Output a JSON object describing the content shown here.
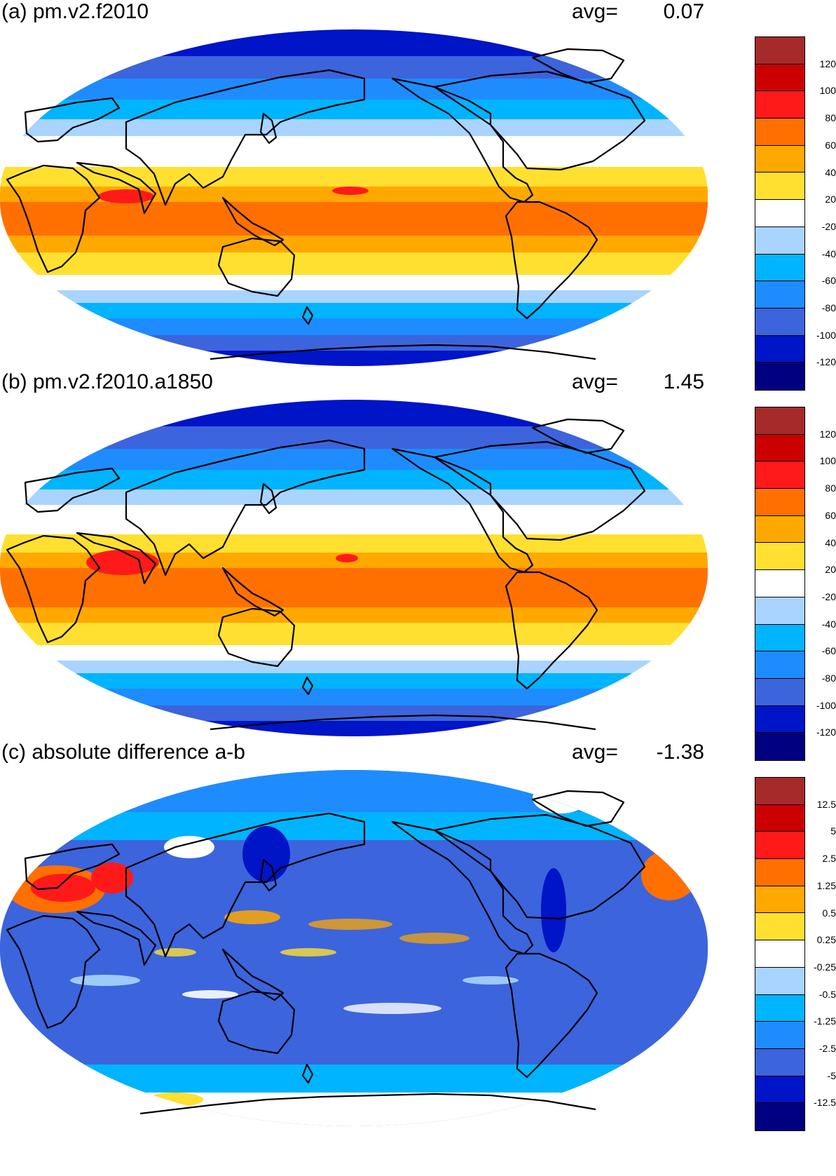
{
  "panels": [
    {
      "title": "(a) pm.v2.f2010",
      "avg_label": "avg=",
      "avg_value": "0.07",
      "scale_labels": [
        "120",
        "100",
        "80",
        "60",
        "40",
        "20",
        "-20",
        "-40",
        "-60",
        "-80",
        "-100",
        "-120"
      ]
    },
    {
      "title": "(b) pm.v2.f2010.a1850",
      "avg_label": "avg=",
      "avg_value": "1.45",
      "scale_labels": [
        "120",
        "100",
        "80",
        "60",
        "40",
        "20",
        "-20",
        "-40",
        "-60",
        "-80",
        "-100",
        "-120"
      ]
    },
    {
      "title": "(c) absolute difference a-b",
      "avg_label": "avg=",
      "avg_value": "-1.38",
      "scale_labels": [
        "12.5",
        "5",
        "2.5",
        "1.25",
        "0.5",
        "0.25",
        "-0.25",
        "-0.5",
        "-1.25",
        "-2.5",
        "-5",
        "-12.5"
      ]
    }
  ],
  "colors": {
    "scale_bins_top_to_bottom": [
      "#a62a2a",
      "#cc0000",
      "#ff1a1a",
      "#ff7000",
      "#ffa800",
      "#ffe030",
      "#ffffff",
      "#a8d4ff",
      "#00b4ff",
      "#1e8cff",
      "#3c64dc",
      "#0014c8",
      "#000080"
    ]
  }
}
